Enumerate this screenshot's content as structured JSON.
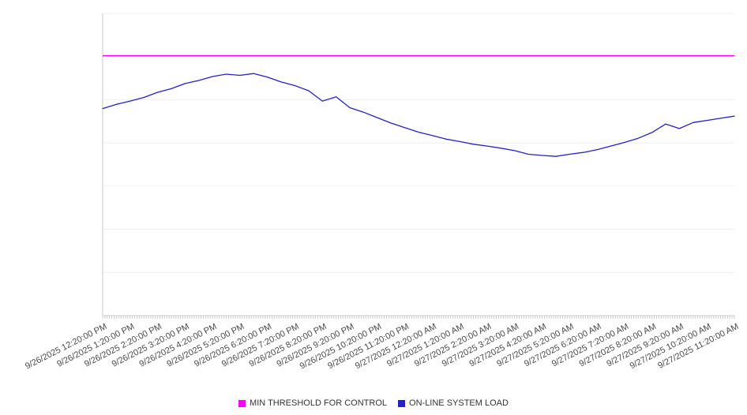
{
  "chart_data": {
    "type": "line",
    "title": "",
    "xlabel": "",
    "ylabel": "",
    "ylim": [
      0,
      100
    ],
    "y_axis_tick_labels": [],
    "grid": "horizontal",
    "legend_position": "bottom-center",
    "x_minor_tick_minutes": 5,
    "x_span_hours": 23,
    "x_labels": [
      "9/26/2025 12:20:00 PM",
      "9/26/2025 1:20:00 PM",
      "9/26/2025 2:20:00 PM",
      "9/26/2025 3:20:00 PM",
      "9/26/2025 4:20:00 PM",
      "9/26/2025 5:20:00 PM",
      "9/26/2025 6:20:00 PM",
      "9/26/2025 7:20:00 PM",
      "9/26/2025 8:20:00 PM",
      "9/26/2025 9:20:00 PM",
      "9/26/2025 10:20:00 PM",
      "9/26/2025 11:20:00 PM",
      "9/27/2025 12:20:00 AM",
      "9/27/2025 1:20:00 AM",
      "9/27/2025 2:20:00 AM",
      "9/27/2025 3:20:00 AM",
      "9/27/2025 4:20:00 AM",
      "9/27/2025 5:20:00 AM",
      "9/27/2025 6:20:00 AM",
      "9/27/2025 7:20:00 AM",
      "9/27/2025 8:20:00 AM",
      "9/27/2025 9:20:00 AM",
      "9/27/2025 10:20:00 AM",
      "9/27/2025 11:20:00 AM"
    ],
    "series": [
      {
        "name": "MIN THRESHOLD FOR CONTROL",
        "type": "constant-line",
        "color": "#ff00ff",
        "value": 86
      },
      {
        "name": "ON-LINE SYSTEM LOAD",
        "type": "line",
        "color": "#2222cc",
        "x_step_hours": 0.5,
        "values": [
          68.5,
          69.9,
          71.0,
          72.2,
          73.9,
          75.1,
          76.8,
          77.8,
          79.1,
          79.9,
          79.5,
          80.1,
          78.9,
          77.3,
          76.1,
          74.4,
          71.0,
          72.4,
          68.8,
          67.3,
          65.5,
          63.7,
          62.2,
          60.7,
          59.6,
          58.4,
          57.6,
          56.7,
          56.1,
          55.4,
          54.6,
          53.4,
          53.0,
          52.7,
          53.4,
          54.0,
          54.9,
          56.1,
          57.3,
          58.7,
          60.6,
          63.4,
          61.9,
          63.9,
          64.6,
          65.3,
          66.0
        ]
      }
    ]
  },
  "legend": {
    "items": [
      {
        "label": "MIN THRESHOLD FOR CONTROL",
        "color": "#ff00ff"
      },
      {
        "label": "ON-LINE SYSTEM LOAD",
        "color": "#2222cc"
      }
    ]
  }
}
